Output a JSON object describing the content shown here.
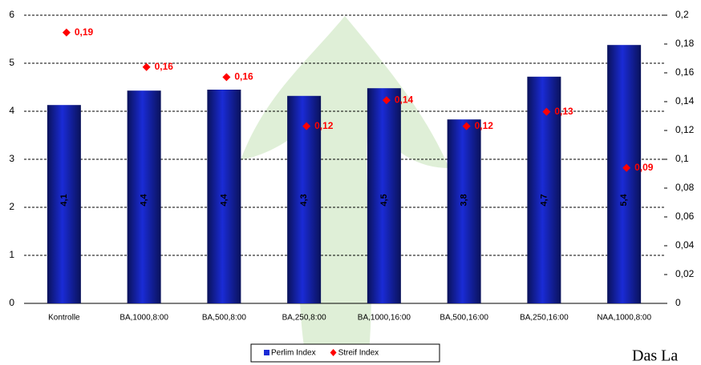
{
  "chart_data": {
    "type": "bar",
    "categories": [
      "Kontrolle",
      "BA,1000,8:00",
      "BA,500,8:00",
      "BA,250,8:00",
      "BA,1000,16:00",
      "BA,500,16:00",
      "BA,250,16:00",
      "NAA,1000,8:00"
    ],
    "series": [
      {
        "name": "Perlim Index",
        "type": "bar",
        "color": "#1a2bd6",
        "values": [
          4.13,
          4.43,
          4.45,
          4.32,
          4.48,
          3.83,
          4.72,
          5.38
        ],
        "value_labels": [
          "4,1",
          "4,4",
          "4,4",
          "4,3",
          "4,5",
          "3,8",
          "4,7",
          "5,4"
        ]
      },
      {
        "name": "Streif Index",
        "type": "scatter",
        "axis": "y2",
        "color": "#ff0000",
        "values": [
          0.188,
          0.164,
          0.157,
          0.123,
          0.141,
          0.123,
          0.133,
          0.094
        ],
        "value_labels": [
          "0,19",
          "0,16",
          "0,16",
          "0,12",
          "0,14",
          "0,12",
          "0,13",
          "0,09"
        ]
      }
    ],
    "ylim": [
      0,
      6
    ],
    "yticks": [
      0,
      1,
      2,
      3,
      4,
      5,
      6
    ],
    "y2lim": [
      0,
      0.2
    ],
    "y2ticks": [
      {
        "value": 0,
        "label": "0"
      },
      {
        "value": 0.02,
        "label": "0,02"
      },
      {
        "value": 0.04,
        "label": "0,04"
      },
      {
        "value": 0.06,
        "label": "0,06"
      },
      {
        "value": 0.08,
        "label": "0,08"
      },
      {
        "value": 0.1,
        "label": "0,1"
      },
      {
        "value": 0.12,
        "label": "0,12"
      },
      {
        "value": 0.14,
        "label": "0,14"
      },
      {
        "value": 0.16,
        "label": "0,16"
      },
      {
        "value": 0.18,
        "label": "0,18"
      },
      {
        "value": 0.2,
        "label": "0,2"
      }
    ],
    "grid": true,
    "legend": "bottom",
    "logo_text": "Das La"
  }
}
